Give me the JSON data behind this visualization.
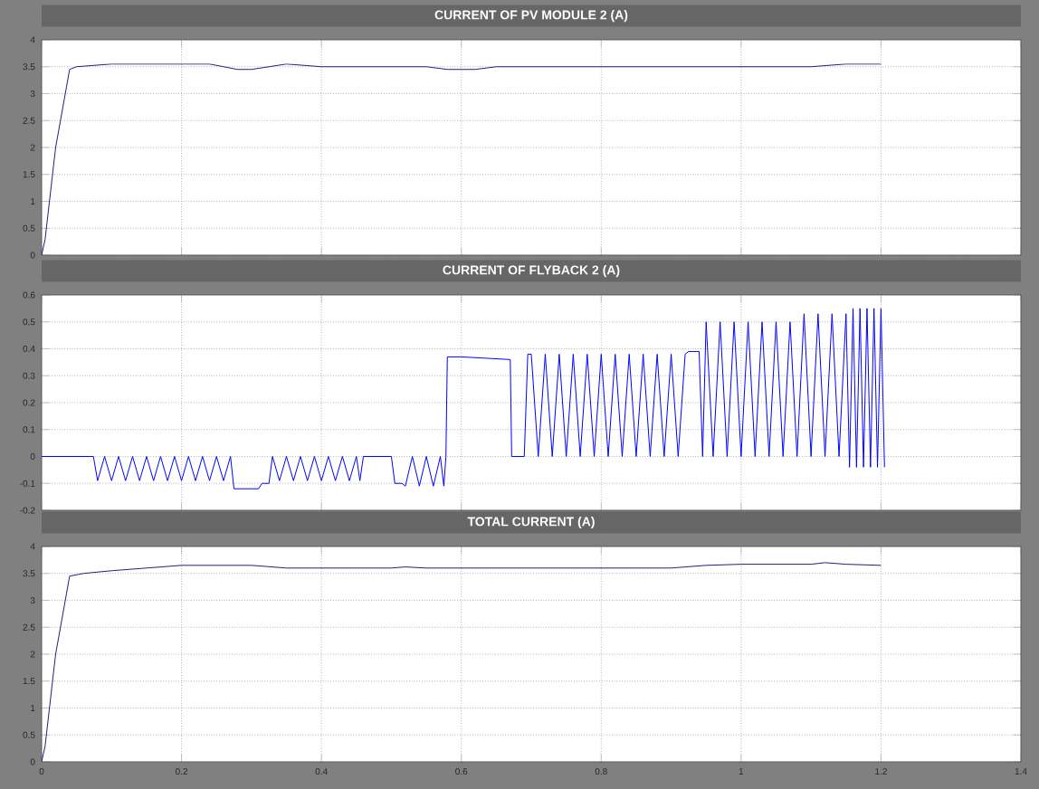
{
  "chart_data": [
    {
      "type": "line",
      "title": "CURRENT OF PV MODULE 2 (A)",
      "color": "#1f1f7a",
      "grid": true,
      "tick_labels": "y",
      "xlim": [
        0,
        1.4
      ],
      "ylim": [
        0,
        4
      ],
      "xticks": [
        0,
        0.2,
        0.4,
        0.6,
        0.8,
        1,
        1.2,
        1.4
      ],
      "yticks": [
        0,
        0.5,
        1,
        1.5,
        2,
        2.5,
        3,
        3.5,
        4
      ],
      "x": [
        0,
        0.005,
        0.02,
        0.04,
        0.05,
        0.1,
        0.15,
        0.2,
        0.24,
        0.26,
        0.28,
        0.3,
        0.35,
        0.4,
        0.45,
        0.48,
        0.5,
        0.55,
        0.58,
        0.6,
        0.62,
        0.65,
        0.7,
        0.8,
        0.9,
        0.95,
        1.0,
        1.05,
        1.1,
        1.15,
        1.17,
        1.2
      ],
      "values": [
        0,
        0.3,
        2,
        3.45,
        3.5,
        3.55,
        3.55,
        3.55,
        3.55,
        3.5,
        3.45,
        3.45,
        3.55,
        3.5,
        3.5,
        3.5,
        3.5,
        3.5,
        3.45,
        3.45,
        3.45,
        3.5,
        3.5,
        3.5,
        3.5,
        3.5,
        3.5,
        3.5,
        3.5,
        3.55,
        3.55,
        3.55
      ]
    },
    {
      "type": "line",
      "title": "CURRENT OF FLYBACK 2 (A)",
      "color": "#0000ff",
      "grid": true,
      "tick_labels": "y",
      "xlim": [
        0,
        1.4
      ],
      "ylim": [
        -0.2,
        0.6
      ],
      "xticks": [
        0,
        0.2,
        0.4,
        0.6,
        0.8,
        1,
        1.2,
        1.4
      ],
      "yticks": [
        -0.2,
        -0.1,
        0,
        0.1,
        0.2,
        0.3,
        0.4,
        0.5,
        0.6
      ],
      "x": [
        0,
        0.074,
        0.08,
        0.09,
        0.1,
        0.11,
        0.12,
        0.13,
        0.14,
        0.15,
        0.16,
        0.17,
        0.18,
        0.19,
        0.2,
        0.21,
        0.22,
        0.23,
        0.24,
        0.25,
        0.26,
        0.27,
        0.275,
        0.31,
        0.315,
        0.325,
        0.33,
        0.34,
        0.35,
        0.36,
        0.37,
        0.38,
        0.39,
        0.4,
        0.41,
        0.42,
        0.43,
        0.44,
        0.45,
        0.455,
        0.46,
        0.5,
        0.505,
        0.515,
        0.52,
        0.53,
        0.54,
        0.55,
        0.56,
        0.57,
        0.575,
        0.578,
        0.58,
        0.6,
        0.67,
        0.672,
        0.69,
        0.695,
        0.7,
        0.71,
        0.72,
        0.73,
        0.74,
        0.75,
        0.76,
        0.77,
        0.78,
        0.79,
        0.8,
        0.81,
        0.82,
        0.83,
        0.84,
        0.85,
        0.86,
        0.87,
        0.88,
        0.89,
        0.9,
        0.91,
        0.92,
        0.925,
        0.94,
        0.945,
        0.95,
        0.96,
        0.97,
        0.98,
        0.99,
        1.0,
        1.01,
        1.02,
        1.03,
        1.04,
        1.05,
        1.06,
        1.07,
        1.08,
        1.09,
        1.1,
        1.11,
        1.12,
        1.13,
        1.14,
        1.15,
        1.155,
        1.16,
        1.165,
        1.17,
        1.175,
        1.18,
        1.185,
        1.19,
        1.195,
        1.2,
        1.205
      ],
      "values": [
        0,
        0,
        -0.09,
        0,
        -0.09,
        0,
        -0.09,
        0,
        -0.09,
        0,
        -0.09,
        0,
        -0.09,
        0,
        -0.09,
        0,
        -0.09,
        0,
        -0.09,
        0,
        -0.09,
        0,
        -0.12,
        -0.12,
        -0.1,
        -0.1,
        0,
        -0.09,
        0,
        -0.09,
        0,
        -0.09,
        0,
        -0.09,
        0,
        -0.09,
        0,
        -0.09,
        0,
        -0.09,
        0,
        0,
        -0.1,
        -0.1,
        -0.11,
        0,
        -0.11,
        0,
        -0.11,
        0,
        -0.11,
        0,
        0.37,
        0.37,
        0.36,
        0,
        0,
        0.38,
        0.38,
        0,
        0.38,
        0,
        0.38,
        0,
        0.38,
        0,
        0.38,
        0,
        0.38,
        0,
        0.38,
        0,
        0.38,
        0,
        0.38,
        0,
        0.38,
        0,
        0.38,
        0,
        0.38,
        0.39,
        0.39,
        0,
        0.5,
        0,
        0.5,
        0,
        0.5,
        0,
        0.5,
        0,
        0.5,
        0,
        0.5,
        0,
        0.5,
        0,
        0.53,
        0,
        0.53,
        0,
        0.53,
        0,
        0.53,
        -0.04,
        0.55,
        -0.04,
        0.55,
        -0.04,
        0.55,
        -0.04,
        0.55,
        -0.04,
        0.55,
        -0.04
      ]
    },
    {
      "type": "line",
      "title": "TOTAL CURRENT (A)",
      "color": "#1f1f7a",
      "grid": true,
      "xlim": [
        0,
        1.4
      ],
      "ylim": [
        0,
        4
      ],
      "xticks": [
        0,
        0.2,
        0.4,
        0.6,
        0.8,
        1,
        1.2,
        1.4
      ],
      "yticks": [
        0,
        0.5,
        1,
        1.5,
        2,
        2.5,
        3,
        3.5,
        4
      ],
      "x": [
        0,
        0.005,
        0.02,
        0.04,
        0.06,
        0.1,
        0.15,
        0.2,
        0.3,
        0.35,
        0.4,
        0.5,
        0.52,
        0.55,
        0.6,
        0.7,
        0.8,
        0.9,
        0.95,
        1.0,
        1.1,
        1.12,
        1.15,
        1.2
      ],
      "values": [
        0,
        0.3,
        2,
        3.45,
        3.5,
        3.55,
        3.6,
        3.65,
        3.65,
        3.6,
        3.6,
        3.6,
        3.62,
        3.6,
        3.6,
        3.6,
        3.6,
        3.6,
        3.65,
        3.67,
        3.67,
        3.7,
        3.67,
        3.65
      ]
    }
  ]
}
